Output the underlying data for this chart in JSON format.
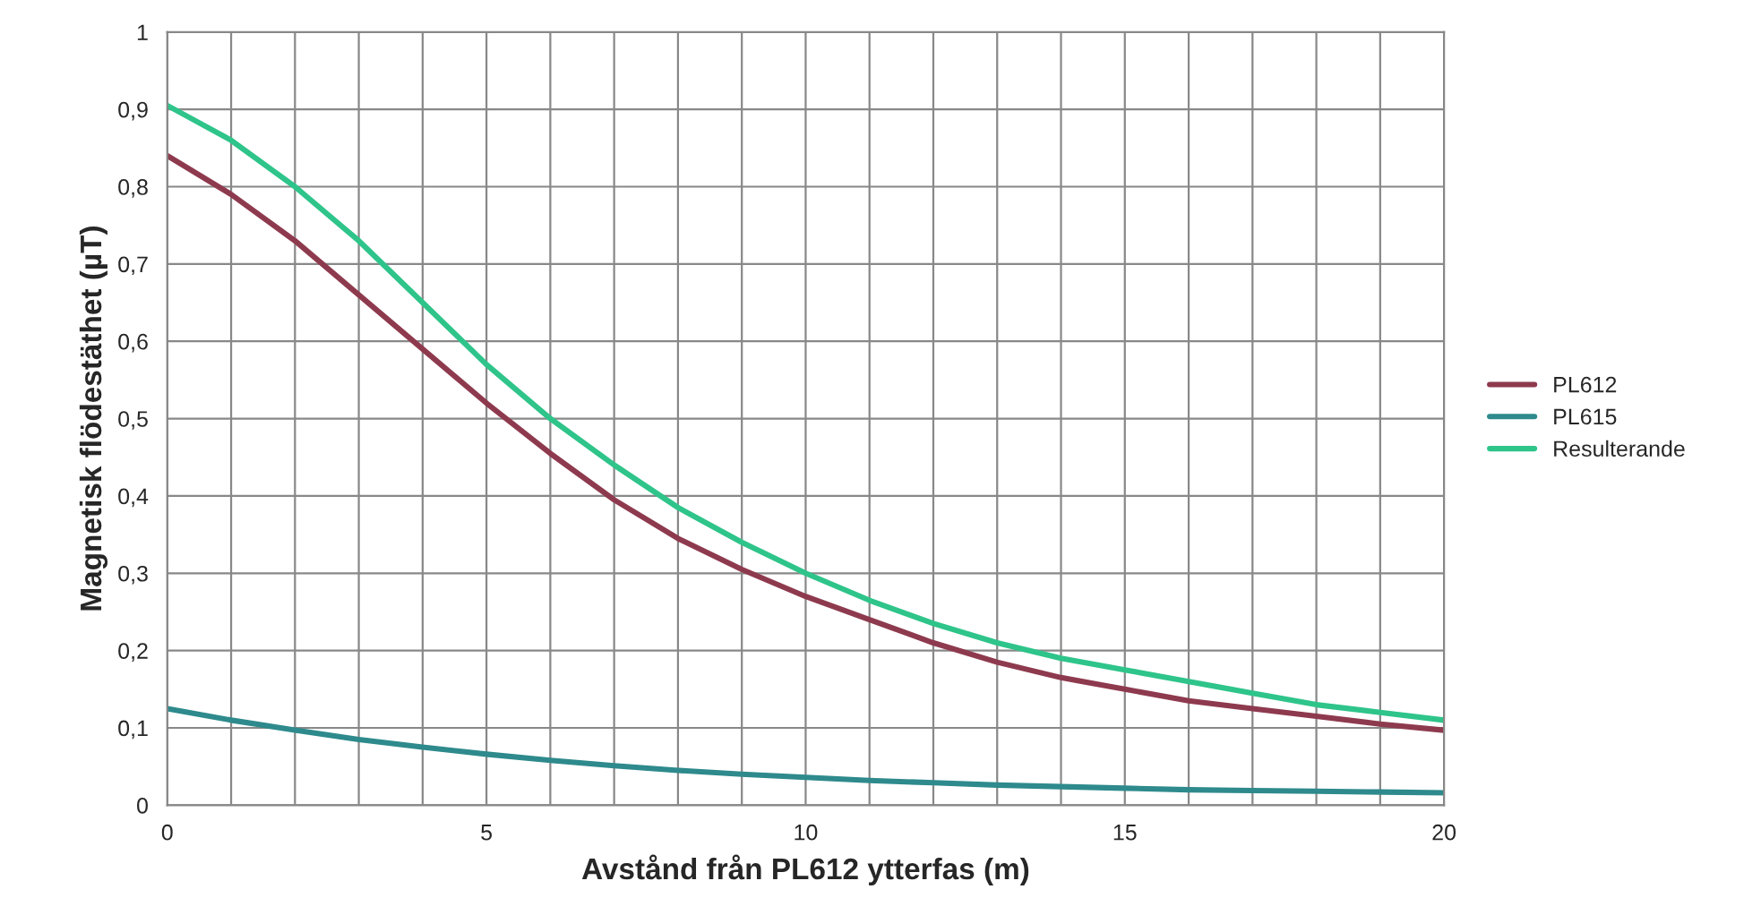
{
  "chart_data": {
    "type": "line",
    "xlabel": "Avstånd från PL612 ytterfas (m)",
    "ylabel": "Magnetisk flödestäthet (µT)",
    "x": [
      0,
      1,
      2,
      3,
      4,
      5,
      6,
      7,
      8,
      9,
      10,
      11,
      12,
      13,
      14,
      15,
      16,
      17,
      18,
      19,
      20
    ],
    "series": [
      {
        "name": "PL612",
        "color": "#8e3a4e",
        "values": [
          0.84,
          0.79,
          0.73,
          0.66,
          0.59,
          0.52,
          0.455,
          0.395,
          0.345,
          0.305,
          0.27,
          0.24,
          0.21,
          0.185,
          0.165,
          0.15,
          0.135,
          0.125,
          0.115,
          0.105,
          0.097
        ]
      },
      {
        "name": "PL615",
        "color": "#2e8a8c",
        "values": [
          0.125,
          0.11,
          0.097,
          0.085,
          0.075,
          0.066,
          0.058,
          0.051,
          0.045,
          0.04,
          0.036,
          0.032,
          0.029,
          0.026,
          0.024,
          0.022,
          0.02,
          0.019,
          0.018,
          0.017,
          0.016
        ]
      },
      {
        "name": "Resulterande",
        "color": "#2ec48a",
        "values": [
          0.905,
          0.86,
          0.8,
          0.73,
          0.65,
          0.57,
          0.5,
          0.44,
          0.385,
          0.34,
          0.3,
          0.265,
          0.235,
          0.21,
          0.19,
          0.175,
          0.16,
          0.145,
          0.13,
          0.12,
          0.11
        ]
      }
    ],
    "xlim": [
      0,
      20
    ],
    "ylim": [
      0,
      1
    ],
    "xticks": [
      0,
      {
        "value": 1,
        "label": null
      },
      {
        "value": 2,
        "label": null
      },
      {
        "value": 3,
        "label": null
      },
      {
        "value": 4,
        "label": null
      },
      5,
      {
        "value": 6,
        "label": null
      },
      {
        "value": 7,
        "label": null
      },
      {
        "value": 8,
        "label": null
      },
      {
        "value": 9,
        "label": null
      },
      10,
      {
        "value": 11,
        "label": null
      },
      {
        "value": 12,
        "label": null
      },
      {
        "value": 13,
        "label": null
      },
      {
        "value": 14,
        "label": null
      },
      15,
      {
        "value": 16,
        "label": null
      },
      {
        "value": 17,
        "label": null
      },
      {
        "value": 18,
        "label": null
      },
      {
        "value": 19,
        "label": null
      },
      20
    ],
    "yticks": [
      0,
      {
        "value": 0.1,
        "label": "0,1"
      },
      {
        "value": 0.2,
        "label": "0,2"
      },
      {
        "value": 0.3,
        "label": "0,3"
      },
      {
        "value": 0.4,
        "label": "0,4"
      },
      {
        "value": 0.5,
        "label": "0,5"
      },
      {
        "value": 0.6,
        "label": "0,6"
      },
      {
        "value": 0.7,
        "label": "0,7"
      },
      {
        "value": 0.8,
        "label": "0,8"
      },
      {
        "value": 0.9,
        "label": "0,9"
      },
      1
    ],
    "grid": true,
    "legend": "right",
    "marker": "none",
    "line_style": "solid"
  }
}
